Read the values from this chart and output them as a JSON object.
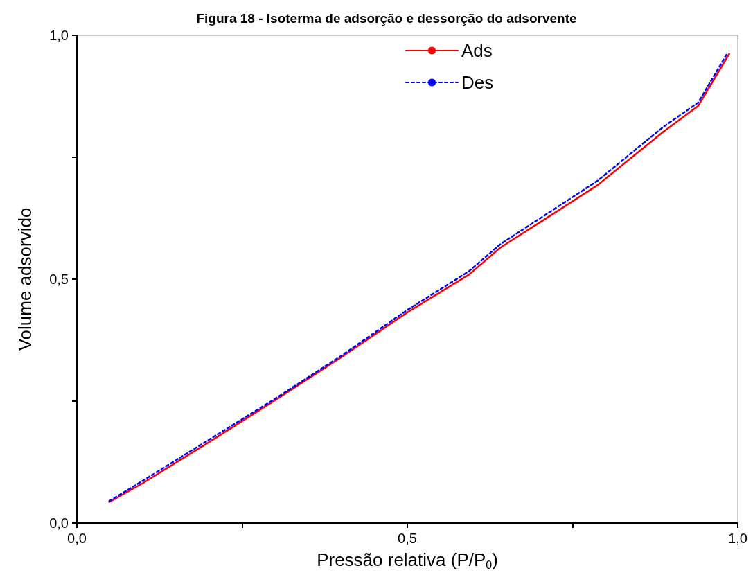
{
  "chart_data": {
    "type": "line",
    "title": "Figura 18 - Isoterma de adsorção e dessorção do adsorvente",
    "xlabel": "Pressão relativa (P/P$_{0}$)",
    "ylabel": "Volume adsorvido",
    "xlim": [
      0,
      1
    ],
    "ylim": [
      0,
      1
    ],
    "xticks": [
      {
        "value": 0,
        "label": "0,0"
      },
      {
        "value": 0.25,
        "label": null
      },
      {
        "value": 0.5,
        "label": "0,5"
      },
      {
        "value": 0.75,
        "label": null
      },
      {
        "value": 1,
        "label": "1,0"
      }
    ],
    "yticks": [
      {
        "value": 0,
        "label": "0,0"
      },
      {
        "value": 0.25,
        "label": null
      },
      {
        "value": 0.5,
        "label": "0,5"
      },
      {
        "value": 0.75,
        "label": null
      },
      {
        "value": 1,
        "label": "1,0"
      }
    ],
    "grid": false,
    "legend": "top",
    "marker": "none",
    "series": [
      {
        "name": "Ads",
        "color": "#ff0000",
        "line_style": "solid",
        "x": [
          0.049,
          0.1,
          0.2,
          0.3,
          0.4,
          0.5,
          0.593,
          0.641,
          0.7,
          0.788,
          0.888,
          0.94,
          0.987
        ],
        "values": [
          0.043,
          0.082,
          0.166,
          0.252,
          0.34,
          0.432,
          0.509,
          0.565,
          0.616,
          0.693,
          0.803,
          0.855,
          0.962
        ]
      },
      {
        "name": "Des",
        "color": "#0000ff",
        "line_style": "dashed",
        "x": [
          0.049,
          0.1,
          0.2,
          0.3,
          0.4,
          0.5,
          0.593,
          0.641,
          0.7,
          0.788,
          0.888,
          0.94,
          0.985
        ],
        "values": [
          0.045,
          0.087,
          0.171,
          0.255,
          0.343,
          0.437,
          0.516,
          0.572,
          0.624,
          0.702,
          0.813,
          0.862,
          0.965
        ]
      }
    ]
  }
}
